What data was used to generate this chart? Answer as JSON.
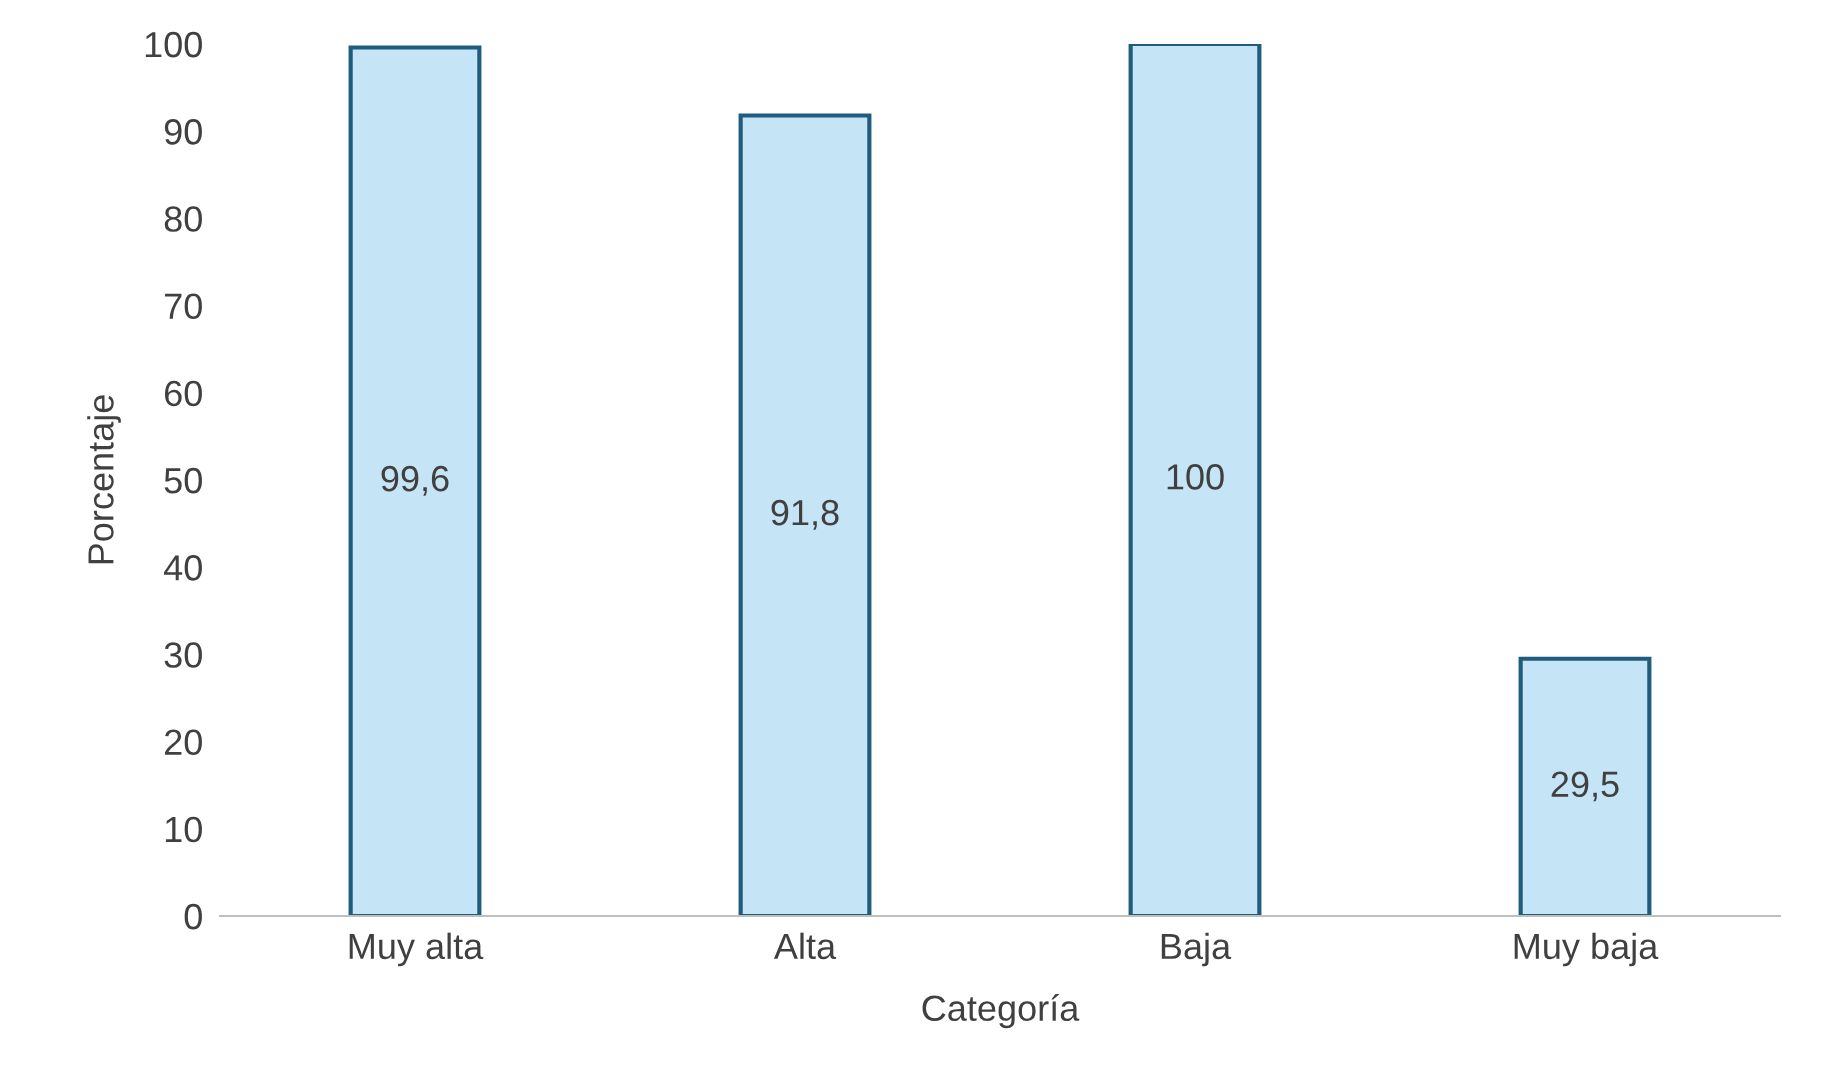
{
  "chart_data": {
    "type": "bar",
    "xlabel": "Categoría",
    "ylabel": "Porcentaje",
    "categories": [
      "Muy alta",
      "Alta",
      "Baja",
      "Muy baja"
    ],
    "values": [
      99.6,
      91.8,
      100,
      29.5
    ],
    "value_labels": [
      "99,6",
      "91,8",
      "100",
      "29,5"
    ],
    "color": "#c5e4f5",
    "ylim": [
      0,
      100
    ],
    "yticks": [
      0,
      10,
      20,
      30,
      40,
      50,
      60,
      70,
      80,
      90,
      100
    ],
    "grid": false,
    "legend": false
  }
}
